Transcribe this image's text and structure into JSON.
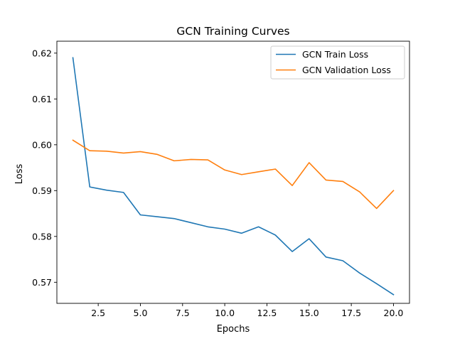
{
  "chart_data": {
    "type": "line",
    "title": "GCN Training Curves",
    "xlabel": "Epochs",
    "ylabel": "Loss",
    "xlim": [
      0.05,
      20.95
    ],
    "ylim": [
      0.5654,
      0.6226
    ],
    "xticks": [
      2.5,
      5.0,
      7.5,
      10.0,
      12.5,
      15.0,
      17.5,
      20.0
    ],
    "xtick_labels": [
      "2.5",
      "5.0",
      "7.5",
      "10.0",
      "12.5",
      "15.0",
      "17.5",
      "20.0"
    ],
    "yticks": [
      0.57,
      0.58,
      0.59,
      0.6,
      0.61,
      0.62
    ],
    "ytick_labels": [
      "0.57",
      "0.58",
      "0.59",
      "0.60",
      "0.61",
      "0.62"
    ],
    "grid": false,
    "legend_position": "top-right",
    "x": [
      1,
      2,
      3,
      4,
      5,
      6,
      7,
      8,
      9,
      10,
      11,
      12,
      13,
      14,
      15,
      16,
      17,
      18,
      19,
      20
    ],
    "series": [
      {
        "name": "GCN Train Loss",
        "color": "#1f77b4",
        "values": [
          0.619,
          0.5908,
          0.5901,
          0.5896,
          0.5847,
          0.5843,
          0.5839,
          0.583,
          0.5821,
          0.5816,
          0.5807,
          0.5821,
          0.5803,
          0.5767,
          0.5795,
          0.5755,
          0.5747,
          0.572,
          0.5697,
          0.5673
        ]
      },
      {
        "name": "GCN Validation Loss",
        "color": "#ff7f0e",
        "values": [
          0.601,
          0.5987,
          0.5986,
          0.5982,
          0.5985,
          0.5979,
          0.5965,
          0.5968,
          0.5967,
          0.5945,
          0.5935,
          0.5941,
          0.5947,
          0.5911,
          0.5961,
          0.5923,
          0.592,
          0.5897,
          0.5861,
          0.59
        ]
      }
    ]
  }
}
